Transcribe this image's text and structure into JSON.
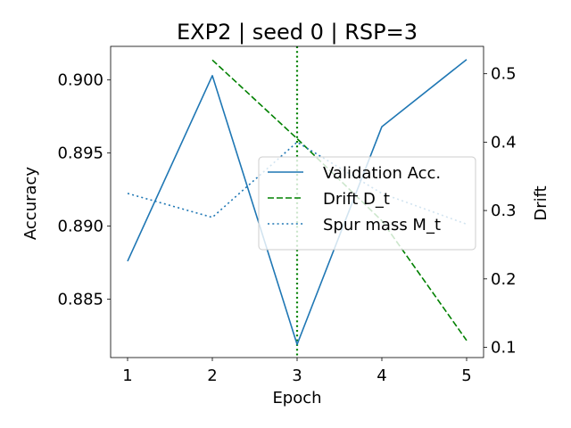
{
  "chart_data": {
    "type": "line",
    "title": "EXP2 | seed 0 | RSP=3",
    "xlabel": "Epoch",
    "ylabel_left": "Accuracy",
    "ylabel_right": "Drift",
    "x": [
      1,
      2,
      3,
      4,
      5
    ],
    "xticks": [
      "1",
      "2",
      "3",
      "4",
      "5"
    ],
    "xlim": [
      0.8,
      5.2
    ],
    "ylim_left": [
      0.881,
      0.9023
    ],
    "yticks_left": [
      "0.885",
      "0.890",
      "0.895",
      "0.900"
    ],
    "ylim_right": [
      0.085,
      0.54
    ],
    "yticks_right": [
      "0.1",
      "0.2",
      "0.3",
      "0.4",
      "0.5"
    ],
    "vline": {
      "x": 3,
      "color": "#008000",
      "style": "dotted"
    },
    "series": [
      {
        "name": "Validation Acc.",
        "axis": "left",
        "color": "#1f77b4",
        "style": "solid",
        "x": [
          1,
          2,
          3,
          4,
          5
        ],
        "values": [
          0.8876,
          0.9003,
          0.8819,
          0.8968,
          0.9014
        ]
      },
      {
        "name": "Drift D_t",
        "axis": "right",
        "color": "#008000",
        "style": "dashed",
        "x": [
          2,
          3,
          4,
          5
        ],
        "values": [
          0.52,
          0.405,
          0.285,
          0.11
        ]
      },
      {
        "name": "Spur mass M_t",
        "axis": "right",
        "color": "#1f77b4",
        "style": "dotted",
        "x": [
          1,
          2,
          3,
          4,
          5
        ],
        "values": [
          0.325,
          0.29,
          0.4,
          0.325,
          0.28
        ]
      }
    ],
    "legend": {
      "placement": "center-right",
      "entries": [
        "Validation Acc.",
        "Drift D_t",
        "Spur mass M_t"
      ]
    },
    "grid": false
  }
}
